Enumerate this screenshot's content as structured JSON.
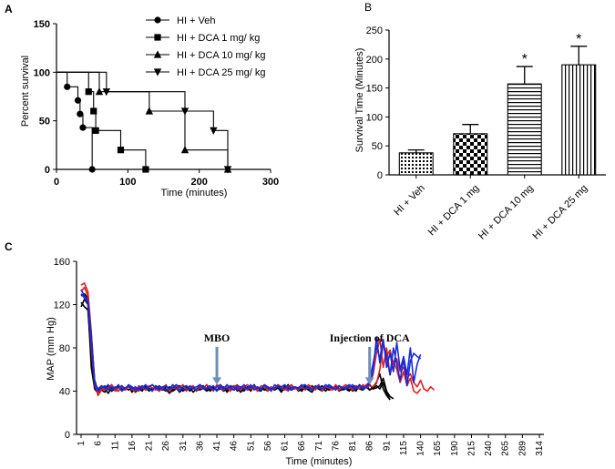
{
  "chart_data": [
    {
      "panel": "A",
      "type": "line",
      "subtype": "kaplan-meier step",
      "xlabel": "Time (minutes)",
      "ylabel": "Percent survival",
      "xlim": [
        0,
        300
      ],
      "ylim": [
        0,
        150
      ],
      "xticks": [
        "0",
        "100",
        "200",
        "300"
      ],
      "yticks": [
        "0",
        "50",
        "100",
        "150"
      ],
      "legend_position": "top-right",
      "series": [
        {
          "name": "HI + Veh",
          "marker": "circle",
          "points": [
            [
              15,
              85
            ],
            [
              30,
              71
            ],
            [
              33,
              57
            ],
            [
              37,
              43
            ],
            [
              50,
              0
            ]
          ]
        },
        {
          "name": "HI + DCA 1 mg/ kg",
          "marker": "square",
          "points": [
            [
              45,
              80
            ],
            [
              52,
              60
            ],
            [
              55,
              40
            ],
            [
              90,
              20
            ],
            [
              125,
              0
            ]
          ]
        },
        {
          "name": "HI + DCA 10 mg/ kg",
          "marker": "triangle-up",
          "points": [
            [
              60,
              80
            ],
            [
              130,
              60
            ],
            [
              180,
              20
            ],
            [
              240,
              0
            ]
          ]
        },
        {
          "name": "HI + DCA 25 mg/ kg",
          "marker": "triangle-down",
          "points": [
            [
              70,
              80
            ],
            [
              180,
              60
            ],
            [
              220,
              40
            ],
            [
              240,
              0
            ]
          ]
        }
      ]
    },
    {
      "panel": "B",
      "type": "bar",
      "ylabel": "Survival Time (Minutes)",
      "ylim": [
        0,
        250
      ],
      "yticks": [
        "0",
        "50",
        "100",
        "150",
        "200",
        "250"
      ],
      "categories": [
        "HI + Veh",
        "HI + DCA 1 mg",
        "HI + DCA 10 mg",
        "HI + DCA 25 mg"
      ],
      "values": [
        38,
        71,
        157,
        190
      ],
      "errors": [
        5,
        16,
        30,
        32
      ],
      "patterns": [
        "dots",
        "checker",
        "horizontal",
        "vertical"
      ],
      "annotations": [
        "",
        "",
        "*",
        "*"
      ]
    },
    {
      "panel": "C",
      "type": "line",
      "xlabel": "Time (minutes)",
      "ylabel": "MAP (mm Hg)",
      "ylim": [
        0,
        160
      ],
      "yticks": [
        "0",
        "40",
        "80",
        "120",
        "160"
      ],
      "xticks": [
        "1",
        "6",
        "11",
        "16",
        "21",
        "26",
        "31",
        "36",
        "41",
        "46",
        "51",
        "56",
        "61",
        "66",
        "71",
        "76",
        "81",
        "86",
        "91",
        "115",
        "140",
        "165",
        "190",
        "215",
        "240",
        "265",
        "289",
        "314"
      ],
      "annotations": [
        {
          "text": "MBO",
          "at_tick": "41"
        },
        {
          "text": "Injection of  DCA",
          "at_tick": "86"
        }
      ],
      "series": [
        {
          "name": "black-1",
          "color": "#000000",
          "values": [
            118,
            125,
            120,
            62,
            42,
            38,
            41,
            39,
            44,
            40,
            42,
            45,
            40,
            43,
            41,
            44,
            39,
            42,
            40,
            45,
            42,
            41,
            43,
            40,
            44,
            42,
            38,
            41,
            43,
            45,
            40,
            42,
            44,
            39,
            42,
            41,
            43,
            40,
            42,
            44,
            41,
            43,
            40,
            42,
            45,
            41,
            43,
            39,
            42,
            44,
            40,
            46,
            41,
            43,
            42,
            40,
            44,
            41,
            43,
            39,
            45,
            42,
            41,
            44,
            40,
            42,
            43,
            41,
            39,
            44,
            42,
            40,
            43,
            41,
            42,
            45,
            40,
            42,
            44,
            41,
            43,
            40,
            46,
            42,
            44,
            41,
            43,
            45,
            42,
            48,
            38,
            32
          ]
        },
        {
          "name": "black-2",
          "color": "#000000",
          "values": [
            122,
            118,
            115,
            72,
            45,
            40,
            44,
            42,
            38,
            43,
            41,
            40,
            44,
            42,
            45,
            39,
            43,
            41,
            42,
            44,
            40,
            43,
            41,
            45,
            42,
            40,
            44,
            41,
            43,
            39,
            42,
            45,
            40,
            43,
            41,
            44,
            42,
            46,
            40,
            43,
            41,
            42,
            44,
            39,
            43,
            41,
            45,
            42,
            40,
            44,
            42,
            43,
            41,
            40,
            45,
            42,
            43,
            41,
            44,
            40,
            42,
            46,
            41,
            43,
            42,
            40,
            44,
            41,
            45,
            42,
            43,
            40,
            44,
            41,
            42,
            43,
            45,
            41,
            42,
            44,
            40,
            43,
            42,
            41,
            44,
            46,
            42,
            43,
            45,
            52,
            40,
            35,
            33
          ]
        },
        {
          "name": "black-3",
          "color": "#000000",
          "values": [
            128,
            130,
            126,
            90,
            50,
            40,
            43,
            41,
            45,
            40,
            43,
            44,
            42,
            41,
            45,
            40,
            43,
            42,
            44,
            41,
            43,
            40,
            45,
            42,
            41,
            44,
            43,
            40,
            42,
            45,
            41,
            43,
            42,
            44,
            40,
            43,
            45,
            41,
            42,
            44,
            40,
            46,
            43,
            41,
            42,
            45,
            40,
            43,
            44,
            41,
            42,
            45,
            40,
            43,
            41,
            44,
            42,
            43,
            45,
            40,
            42,
            44,
            41,
            43,
            42,
            40,
            45,
            43,
            41,
            44,
            42,
            45,
            40,
            43,
            42,
            44,
            41,
            43,
            42,
            40,
            44,
            45,
            42,
            43,
            46,
            41,
            44,
            48,
            56,
            42,
            36,
            32
          ]
        },
        {
          "name": "red-1",
          "color": "#e02020",
          "values": [
            138,
            140,
            132,
            95,
            48,
            36,
            41,
            44,
            42,
            46,
            40,
            43,
            45,
            41,
            44,
            42,
            40,
            45,
            43,
            41,
            44,
            46,
            42,
            40,
            43,
            45,
            41,
            44,
            42,
            43,
            46,
            40,
            44,
            42,
            41,
            45,
            43,
            42,
            44,
            40,
            46,
            43,
            41,
            44,
            42,
            45,
            43,
            41,
            44,
            46,
            42,
            43,
            40,
            45,
            44,
            42,
            41,
            43,
            46,
            44,
            42,
            40,
            45,
            43,
            41,
            44,
            42,
            46,
            43,
            41,
            45,
            42,
            44,
            43,
            41,
            46,
            42,
            44,
            43,
            45,
            41,
            44,
            42,
            46,
            43,
            45,
            44,
            47,
            60,
            85,
            72,
            78,
            65,
            70,
            58,
            62,
            52,
            56,
            48,
            44,
            50,
            42,
            40,
            44,
            41
          ]
        },
        {
          "name": "red-2",
          "color": "#e02020",
          "values": [
            132,
            136,
            128,
            80,
            45,
            38,
            44,
            41,
            43,
            46,
            42,
            40,
            44,
            43,
            45,
            41,
            43,
            40,
            44,
            42,
            45,
            43,
            41,
            44,
            42,
            46,
            40,
            43,
            45,
            41,
            44,
            42,
            43,
            45,
            40,
            44,
            42,
            46,
            43,
            41,
            44,
            45,
            42,
            43,
            40,
            44,
            46,
            42,
            43,
            41,
            45,
            44,
            42,
            43,
            46,
            40,
            44,
            42,
            45,
            43,
            41,
            44,
            46,
            42,
            43,
            45,
            41,
            44,
            42,
            43,
            46,
            40,
            44,
            45,
            42,
            43,
            41,
            44,
            46,
            43,
            42,
            45,
            44,
            43,
            46,
            48,
            55,
            75,
            88,
            62,
            80,
            55,
            68,
            60,
            48,
            58,
            45,
            52,
            40,
            38,
            42
          ]
        },
        {
          "name": "blue-1",
          "color": "#1a2bd6",
          "values": [
            130,
            126,
            122,
            85,
            46,
            40,
            43,
            45,
            41,
            44,
            42,
            46,
            40,
            43,
            45,
            42,
            44,
            41,
            43,
            46,
            42,
            40,
            45,
            43,
            44,
            41,
            42,
            46,
            43,
            40,
            44,
            45,
            42,
            43,
            41,
            46,
            44,
            42,
            43,
            45,
            40,
            44,
            42,
            46,
            43,
            41,
            45,
            44,
            42,
            43,
            46,
            41,
            44,
            42,
            45,
            43,
            40,
            46,
            44,
            42,
            43,
            45,
            41,
            44,
            43,
            46,
            42,
            44,
            41,
            45,
            43,
            42,
            46,
            44,
            43,
            41,
            45,
            42,
            44,
            46,
            43,
            42,
            45,
            44,
            43,
            50,
            65,
            82,
            70,
            88,
            62,
            75,
            58,
            85,
            60,
            72,
            55,
            80,
            48,
            65,
            74
          ]
        },
        {
          "name": "blue-2",
          "color": "#1a2bd6",
          "values": [
            134,
            128,
            124,
            92,
            48,
            42,
            45,
            43,
            46,
            41,
            44,
            43,
            45,
            42,
            46,
            44,
            41,
            43,
            45,
            42,
            44,
            46,
            43,
            41,
            44,
            45,
            42,
            43,
            46,
            44,
            42,
            41,
            45,
            43,
            44,
            46,
            42,
            43,
            45,
            41,
            44,
            46,
            43,
            42,
            45,
            44,
            41,
            43,
            46,
            42,
            44,
            45,
            43,
            41,
            46,
            44,
            42,
            43,
            45,
            44,
            46,
            41,
            43,
            44,
            42,
            45,
            46,
            43,
            41,
            44,
            45,
            42,
            43,
            46,
            44,
            41,
            45,
            43,
            42,
            44,
            46,
            43,
            45,
            42,
            44,
            47,
            58,
            90,
            66,
            84,
            72,
            55,
            80,
            65,
            50,
            70,
            45,
            68,
            75,
            72,
            70
          ]
        }
      ]
    }
  ],
  "labels": {
    "a": "A",
    "b": "B",
    "c": "C"
  }
}
